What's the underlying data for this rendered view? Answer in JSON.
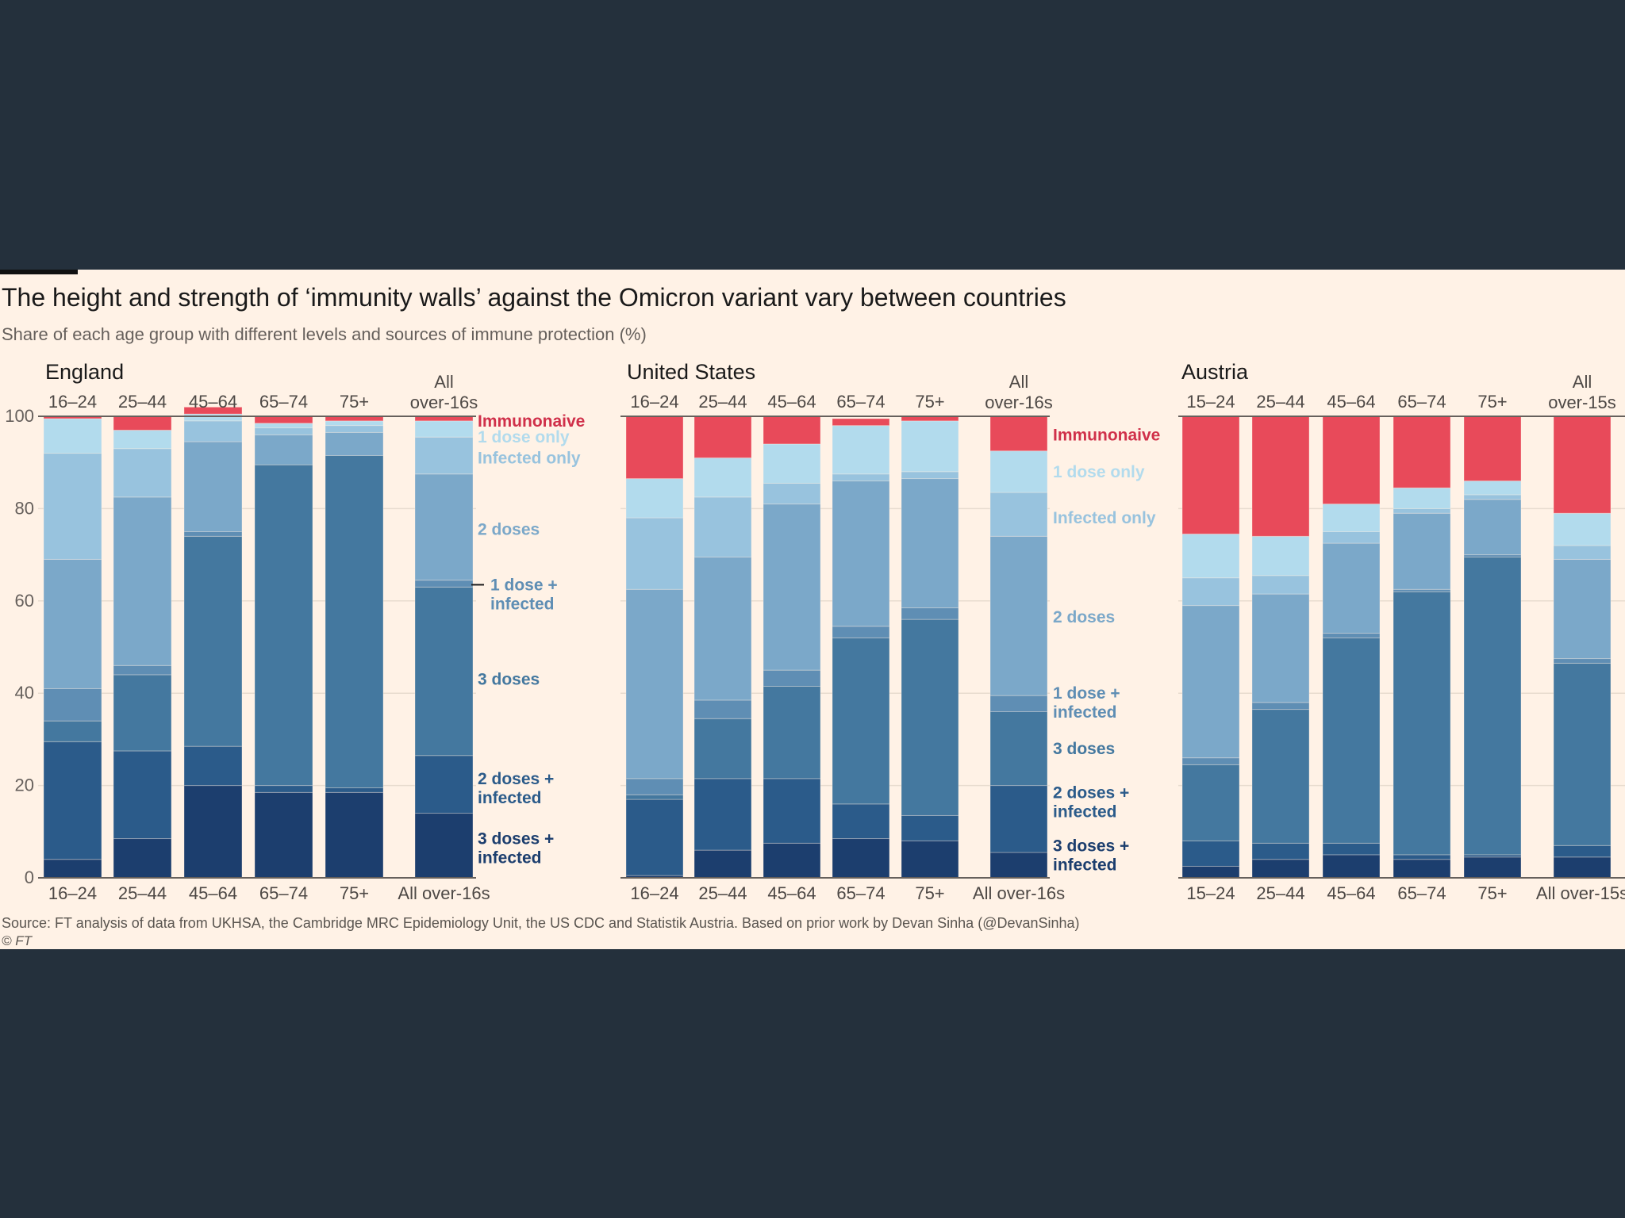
{
  "title": "The height and strength of ‘immunity walls’ against the Omicron variant vary between countries",
  "subtitle": "Share of each age group with different levels and sources of immune protection (%)",
  "source": "Source: FT analysis of data from UKHSA, the Cambridge MRC Epidemiology Unit, the US CDC and Statistik Austria. Based on prior work by Devan Sinha (@DevanSinha)",
  "copyright": "© FT",
  "colors": {
    "background": "#24303c",
    "panel": "#fff2e6",
    "immunonaive": "#e84a5a",
    "immunonaive_label": "#d0304a",
    "dose1_only": "#b2dbed",
    "infected_only": "#98c3de",
    "doses2": "#7ba8c9",
    "dose1_infected": "#5f8eb4",
    "doses3": "#44789f",
    "doses2_infected": "#2b5b8a",
    "doses3_infected": "#1c3e6e"
  },
  "chart_data": [
    {
      "type": "bar",
      "stacked": true,
      "panel_title": "England",
      "categories": [
        "16–24",
        "25–44",
        "45–64",
        "65–74",
        "75+",
        "All over-16s"
      ],
      "top_labels": [
        "16–24",
        "25–44",
        "45–64",
        "65–74",
        "75+",
        "All\nover-16s"
      ],
      "ylim": [
        0,
        100
      ],
      "yticks": [
        0,
        20,
        40,
        60,
        80,
        100
      ],
      "series": [
        {
          "name": "3 doses + infected",
          "key": "doses3_infected",
          "values": [
            4,
            8.5,
            20,
            18.5,
            18.5,
            14
          ]
        },
        {
          "name": "2 doses + infected",
          "key": "doses2_infected",
          "values": [
            25.5,
            19,
            8.5,
            1.5,
            1,
            12.5
          ]
        },
        {
          "name": "3 doses",
          "key": "doses3",
          "values": [
            4.5,
            16.5,
            45.5,
            69.5,
            72,
            36.5
          ]
        },
        {
          "name": "1 dose + infected",
          "key": "dose1_infected",
          "values": [
            7,
            2,
            1,
            0,
            0,
            1.5
          ]
        },
        {
          "name": "2 doses",
          "key": "doses2",
          "values": [
            28,
            36.5,
            19.5,
            6.5,
            5,
            23
          ]
        },
        {
          "name": "Infected only",
          "key": "infected_only",
          "values": [
            23,
            10.5,
            4.5,
            1.5,
            1.5,
            8
          ]
        },
        {
          "name": "1 dose only",
          "key": "dose1_only",
          "values": [
            7.5,
            4,
            1.5,
            1,
            1,
            3.5
          ]
        },
        {
          "name": "Immunonaive",
          "key": "immunonaive",
          "values": [
            0.5,
            3,
            1.5,
            1.5,
            1,
            1
          ]
        }
      ],
      "legend": [
        {
          "text": "Immunonaive",
          "key": "immunonaive_label",
          "y": 99
        },
        {
          "text": "1 dose only",
          "key": "dose1_only",
          "y": 95.5
        },
        {
          "text": "Infected only",
          "key": "infected_only",
          "y": 91
        },
        {
          "text": "2 doses",
          "key": "doses2",
          "y": 75.5
        },
        {
          "text": "1 dose +\ninfected",
          "key": "dose1_infected",
          "y": 63.5,
          "leader": true
        },
        {
          "text": "3 doses",
          "key": "doses3",
          "y": 43
        },
        {
          "text": "2 doses +\ninfected",
          "key": "doses2_infected",
          "y": 21.5
        },
        {
          "text": "3 doses +\ninfected",
          "key": "doses3_infected",
          "y": 8.5
        }
      ]
    },
    {
      "type": "bar",
      "stacked": true,
      "panel_title": "United States",
      "categories": [
        "16–24",
        "25–44",
        "45–64",
        "65–74",
        "75+",
        "All over-16s"
      ],
      "top_labels": [
        "16–24",
        "25–44",
        "45–64",
        "65–74",
        "75+",
        "All\nover-16s"
      ],
      "ylim": [
        0,
        100
      ],
      "series": [
        {
          "name": "3 doses + infected",
          "key": "doses3_infected",
          "values": [
            0.5,
            6,
            7.5,
            8.5,
            8,
            5.5
          ]
        },
        {
          "name": "2 doses + infected",
          "key": "doses2_infected",
          "values": [
            16.5,
            15.5,
            14,
            7.5,
            5.5,
            14.5
          ]
        },
        {
          "name": "3 doses",
          "key": "doses3",
          "values": [
            1,
            13,
            20,
            36,
            42.5,
            16
          ]
        },
        {
          "name": "1 dose + infected",
          "key": "dose1_infected",
          "values": [
            3.5,
            4,
            3.5,
            2.5,
            2.5,
            3.5
          ]
        },
        {
          "name": "2 doses",
          "key": "doses2",
          "values": [
            41,
            31,
            36,
            31.5,
            28,
            34.5
          ]
        },
        {
          "name": "Infected only",
          "key": "infected_only",
          "values": [
            15.5,
            13,
            4.5,
            1.5,
            1.5,
            9.5
          ]
        },
        {
          "name": "1 dose only",
          "key": "dose1_only",
          "values": [
            8.5,
            8.5,
            8.5,
            10.5,
            11,
            9
          ]
        },
        {
          "name": "Immunonaive",
          "key": "immunonaive",
          "values": [
            13.5,
            9,
            6,
            1.5,
            1,
            7.5
          ]
        }
      ],
      "legend": [
        {
          "text": "Immunonaive",
          "key": "immunonaive_label",
          "y": 96
        },
        {
          "text": "1 dose only",
          "key": "dose1_only",
          "y": 88
        },
        {
          "text": "Infected only",
          "key": "infected_only",
          "y": 78
        },
        {
          "text": "2 doses",
          "key": "doses2",
          "y": 56.5
        },
        {
          "text": "1 dose +\ninfected",
          "key": "dose1_infected",
          "y": 40
        },
        {
          "text": "3 doses",
          "key": "doses3",
          "y": 28
        },
        {
          "text": "2 doses +\ninfected",
          "key": "doses2_infected",
          "y": 18.5
        },
        {
          "text": "3 doses +\ninfected",
          "key": "doses3_infected",
          "y": 7
        }
      ]
    },
    {
      "type": "bar",
      "stacked": true,
      "panel_title": "Austria",
      "categories": [
        "15–24",
        "25–44",
        "45–64",
        "65–74",
        "75+",
        "All over-15s"
      ],
      "top_labels": [
        "15–24",
        "25–44",
        "45–64",
        "65–74",
        "75+",
        "All\nover-15s"
      ],
      "ylim": [
        0,
        100
      ],
      "series": [
        {
          "name": "3 doses + infected",
          "key": "doses3_infected",
          "values": [
            2.5,
            4,
            5,
            4,
            4.5,
            4.5
          ]
        },
        {
          "name": "2 doses + infected",
          "key": "doses2_infected",
          "values": [
            5.5,
            3.5,
            2.5,
            1,
            0.5,
            2.5
          ]
        },
        {
          "name": "3 doses",
          "key": "doses3",
          "values": [
            16.5,
            29,
            44.5,
            57,
            64.5,
            39.5
          ]
        },
        {
          "name": "1 dose + infected",
          "key": "dose1_infected",
          "values": [
            1.5,
            1.5,
            1,
            0.5,
            0.5,
            1
          ]
        },
        {
          "name": "2 doses",
          "key": "doses2",
          "values": [
            33,
            23.5,
            19.5,
            16.5,
            12,
            21.5
          ]
        },
        {
          "name": "Infected only",
          "key": "infected_only",
          "values": [
            6,
            4,
            2.5,
            1,
            1,
            3
          ]
        },
        {
          "name": "1 dose only",
          "key": "dose1_only",
          "values": [
            9.5,
            8.5,
            6,
            4.5,
            3,
            7
          ]
        },
        {
          "name": "Immunonaive",
          "key": "immunonaive",
          "values": [
            25.5,
            26,
            19,
            15.5,
            14,
            21
          ]
        }
      ]
    }
  ]
}
